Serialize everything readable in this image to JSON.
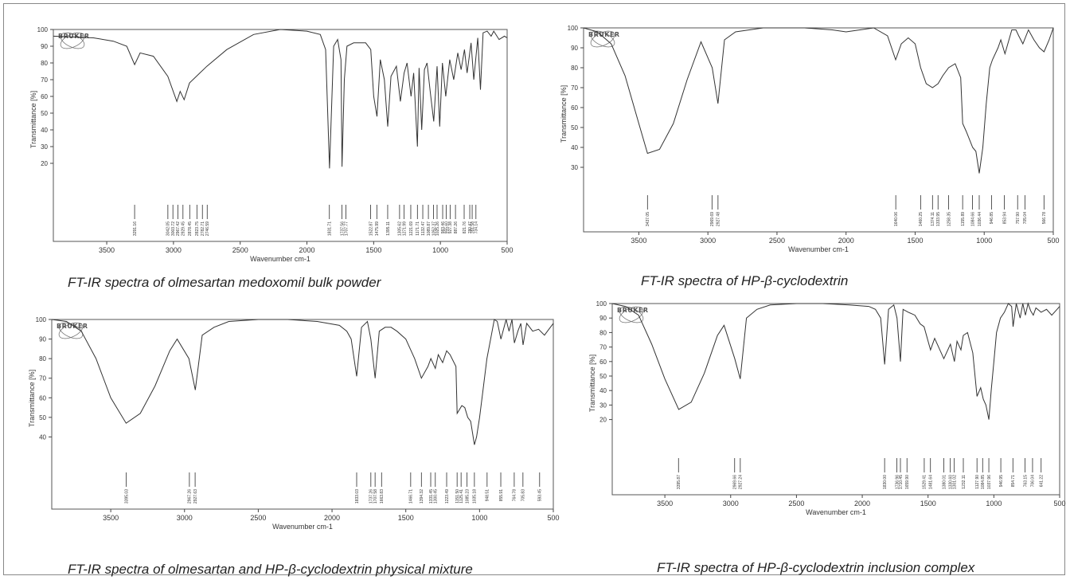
{
  "logo_text": "BRUKER",
  "chart_data": [
    {
      "type": "line",
      "caption": "FT-IR spectra of olmesartan medoxomil bulk powder",
      "xlabel": "Wavenumber cm-1",
      "ylabel": "Transmittance [%]",
      "xlim": [
        3900,
        500
      ],
      "ylim": [
        0,
        100
      ],
      "x_ticks": [
        3500,
        3000,
        2500,
        2000,
        1500,
        1000,
        500
      ],
      "y_ticks": [
        20,
        30,
        40,
        50,
        60,
        70,
        80,
        90,
        100
      ],
      "x_reversed": true,
      "series": [
        {
          "x": [
            3900,
            3600,
            3450,
            3350,
            3291,
            3250,
            3150,
            3042,
            2975,
            2950,
            2920,
            2880,
            2750,
            2600,
            2400,
            2200,
            2000,
            1900,
            1860,
            1831,
            1800,
            1770,
            1745,
            1737,
            1720,
            1700,
            1650,
            1560,
            1522,
            1500,
            1475,
            1450,
            1420,
            1395,
            1370,
            1330,
            1300,
            1272,
            1250,
            1220,
            1200,
            1172,
            1160,
            1140,
            1120,
            1100,
            1075,
            1050,
            1025,
            1005,
            985,
            960,
            930,
            900,
            870,
            845,
            820,
            800,
            770,
            750,
            720,
            700,
            680,
            650,
            620,
            600,
            560,
            520,
            500
          ],
          "y": [
            96,
            95,
            93,
            90,
            79,
            86,
            84,
            72,
            57,
            63,
            58,
            68,
            78,
            88,
            97,
            100,
            99,
            97,
            88,
            17,
            90,
            94,
            82,
            18,
            70,
            90,
            92,
            92,
            88,
            60,
            48,
            82,
            70,
            42,
            72,
            78,
            57,
            74,
            80,
            60,
            74,
            30,
            77,
            40,
            76,
            80,
            62,
            45,
            78,
            42,
            80,
            60,
            82,
            70,
            86,
            76,
            88,
            74,
            92,
            70,
            95,
            64,
            98,
            99,
            96,
            99,
            94,
            96,
            95
          ]
        }
      ],
      "peak_labels": [
        "3291.16",
        "3042.05",
        "3003.72",
        "2967.42",
        "2929.45",
        "2878.45",
        "2823.75",
        "2782.71",
        "2746.59",
        "1831.71",
        "1737.56",
        "1707.77",
        "1522.87",
        "1475.99",
        "1395.11",
        "1305.62",
        "1271.99",
        "1221.69",
        "1171.71",
        "1132.47",
        "1089.87",
        "1052.37",
        "1025.26",
        "983.46",
        "955.60",
        "927.38",
        "887.26",
        "821.76",
        "780.47",
        "761.58",
        "734.14"
      ],
      "peak_x": [
        3291,
        3042,
        3004,
        2967,
        2929,
        2878,
        2824,
        2783,
        2747,
        1832,
        1738,
        1708,
        1523,
        1476,
        1395,
        1306,
        1272,
        1222,
        1172,
        1132,
        1090,
        1052,
        1025,
        983,
        956,
        927,
        887,
        822,
        780,
        762,
        734
      ]
    },
    {
      "type": "line",
      "caption": "FT-IR spectra of HP-β-cyclodextrin",
      "xlabel": "Wavenumber cm-1",
      "ylabel": "Transmittance [%]",
      "xlim": [
        3900,
        500
      ],
      "ylim": [
        20,
        100
      ],
      "x_ticks": [
        3500,
        3000,
        2500,
        2000,
        1500,
        1000,
        500
      ],
      "y_ticks": [
        30,
        40,
        50,
        60,
        70,
        80,
        90,
        100
      ],
      "x_reversed": true,
      "series": [
        {
          "x": [
            3900,
            3800,
            3700,
            3600,
            3500,
            3437,
            3350,
            3250,
            3150,
            3050,
            2969,
            2927,
            2880,
            2800,
            2700,
            2600,
            2500,
            2300,
            2100,
            2000,
            1900,
            1800,
            1700,
            1641,
            1600,
            1550,
            1500,
            1460,
            1420,
            1374,
            1334,
            1300,
            1258,
            1210,
            1170,
            1156,
            1130,
            1084,
            1060,
            1036,
            1010,
            985,
            960,
            940,
            900,
            880,
            850,
            800,
            770,
            750,
            720,
            680,
            640,
            600,
            567,
            530,
            500
          ],
          "y": [
            100,
            98,
            92,
            76,
            52,
            37,
            39,
            52,
            74,
            93,
            80,
            62,
            94,
            98,
            99,
            100,
            100,
            100,
            99,
            98,
            99,
            100,
            96,
            84,
            92,
            95,
            92,
            80,
            72,
            70,
            72,
            76,
            80,
            82,
            75,
            52,
            48,
            40,
            38,
            27,
            40,
            62,
            80,
            84,
            90,
            94,
            87,
            99,
            99,
            96,
            92,
            99,
            94,
            90,
            88,
            94,
            100
          ]
        }
      ],
      "peak_labels": [
        "3437.05",
        "2969.69",
        "2927.48",
        "1640.06",
        "1460.25",
        "1374.11",
        "1333.95",
        "1258.35",
        "1155.89",
        "1084.66",
        "1036.44",
        "946.85",
        "853.94",
        "757.90",
        "705.04",
        "566.78"
      ],
      "peak_x": [
        3437,
        2970,
        2927,
        1640,
        1460,
        1374,
        1334,
        1258,
        1156,
        1085,
        1036,
        947,
        854,
        758,
        705,
        567
      ]
    },
    {
      "type": "line",
      "caption": "FT-IR spectra of olmesartan and HP-β-cyclodextrin physical mixture",
      "xlabel": "Wavenumber cm-1",
      "ylabel": "Transmittance [%]",
      "xlim": [
        3900,
        500
      ],
      "ylim": [
        30,
        100
      ],
      "x_ticks": [
        3500,
        3000,
        2500,
        2000,
        1500,
        1000,
        500
      ],
      "y_ticks": [
        40,
        50,
        60,
        70,
        80,
        90,
        100
      ],
      "x_reversed": true,
      "series": [
        {
          "x": [
            3900,
            3800,
            3700,
            3600,
            3500,
            3396,
            3300,
            3200,
            3100,
            3050,
            2970,
            2927,
            2880,
            2800,
            2700,
            2500,
            2300,
            2100,
            1950,
            1900,
            1870,
            1833,
            1800,
            1760,
            1737,
            1708,
            1680,
            1640,
            1600,
            1560,
            1500,
            1470,
            1440,
            1394,
            1350,
            1330,
            1300,
            1280,
            1250,
            1223,
            1200,
            1160,
            1152,
            1120,
            1100,
            1080,
            1060,
            1035,
            1020,
            1000,
            980,
            950,
            920,
            900,
            880,
            855,
            820,
            800,
            780,
            764,
            740,
            720,
            705,
            680,
            640,
            600,
            560,
            530,
            500
          ],
          "y": [
            100,
            99,
            94,
            80,
            60,
            47,
            52,
            66,
            84,
            90,
            80,
            64,
            92,
            96,
            99,
            100,
            100,
            99,
            97,
            94,
            90,
            71,
            96,
            99,
            90,
            70,
            94,
            96,
            96,
            94,
            90,
            85,
            80,
            70,
            76,
            80,
            75,
            82,
            78,
            84,
            82,
            76,
            52,
            56,
            55,
            50,
            48,
            36,
            40,
            50,
            62,
            80,
            92,
            100,
            99,
            90,
            100,
            94,
            100,
            88,
            94,
            98,
            87,
            98,
            94,
            95,
            92,
            95,
            98
          ]
        }
      ],
      "peak_labels": [
        "3395.03",
        "2967.26",
        "2927.63",
        "1833.03",
        "1737.26",
        "1707.58",
        "1663.83",
        "1466.71",
        "1394.32",
        "1331.45",
        "1300.45",
        "1223.49",
        "1151.50",
        "1125.41",
        "1085.23",
        "1035.18",
        "948.51",
        "855.91",
        "764.78",
        "705.83",
        "593.45"
      ],
      "peak_x": [
        3395,
        2967,
        2928,
        1833,
        1737,
        1708,
        1664,
        1467,
        1394,
        1331,
        1300,
        1223,
        1152,
        1125,
        1085,
        1035,
        949,
        856,
        765,
        706,
        593
      ]
    },
    {
      "type": "line",
      "caption": "FT-IR spectra of HP-β-cyclodextrin inclusion complex",
      "xlabel": "Wavenumber cm-1",
      "ylabel": "Transmittance [%]",
      "xlim": [
        3900,
        500
      ],
      "ylim": [
        0,
        100
      ],
      "x_ticks": [
        3500,
        3000,
        2500,
        2000,
        1500,
        1000,
        500
      ],
      "y_ticks": [
        20,
        30,
        40,
        50,
        60,
        70,
        80,
        90,
        100
      ],
      "x_reversed": true,
      "series": [
        {
          "x": [
            3900,
            3800,
            3700,
            3600,
            3500,
            3395,
            3300,
            3200,
            3100,
            3050,
            2969,
            2927,
            2880,
            2800,
            2700,
            2500,
            2300,
            2100,
            1950,
            1900,
            1860,
            1830,
            1800,
            1760,
            1736,
            1710,
            1690,
            1650,
            1600,
            1560,
            1530,
            1481,
            1450,
            1380,
            1330,
            1300,
            1280,
            1250,
            1232,
            1200,
            1160,
            1128,
            1100,
            1080,
            1060,
            1038,
            1020,
            1000,
            980,
            950,
            920,
            890,
            865,
            854,
            830,
            800,
            780,
            760,
            740,
            720,
            700,
            680,
            641,
            600,
            560,
            520,
            500
          ],
          "y": [
            100,
            98,
            92,
            72,
            48,
            27,
            32,
            52,
            78,
            85,
            62,
            48,
            90,
            96,
            99,
            100,
            100,
            99,
            98,
            96,
            90,
            58,
            96,
            99,
            90,
            60,
            96,
            94,
            92,
            86,
            84,
            68,
            76,
            62,
            72,
            60,
            74,
            68,
            78,
            80,
            66,
            36,
            42,
            34,
            30,
            20,
            40,
            60,
            80,
            90,
            94,
            100,
            98,
            84,
            100,
            90,
            100,
            92,
            100,
            95,
            92,
            97,
            94,
            96,
            92,
            96,
            98
          ]
        }
      ],
      "peak_labels": [
        "3395.87",
        "2969.66",
        "2927.24",
        "1830.00",
        "1736.96",
        "1710.45",
        "1659.90",
        "1529.41",
        "1481.64",
        "1380.01",
        "1330.60",
        "1301.02",
        "1232.11",
        "1127.90",
        "1084.85",
        "1037.96",
        "946.95",
        "854.71",
        "763.15",
        "706.04",
        "641.22"
      ],
      "peak_x": [
        3396,
        2970,
        2927,
        1830,
        1737,
        1710,
        1660,
        1529,
        1482,
        1380,
        1331,
        1301,
        1232,
        1128,
        1085,
        1038,
        947,
        855,
        763,
        706,
        641
      ]
    }
  ]
}
